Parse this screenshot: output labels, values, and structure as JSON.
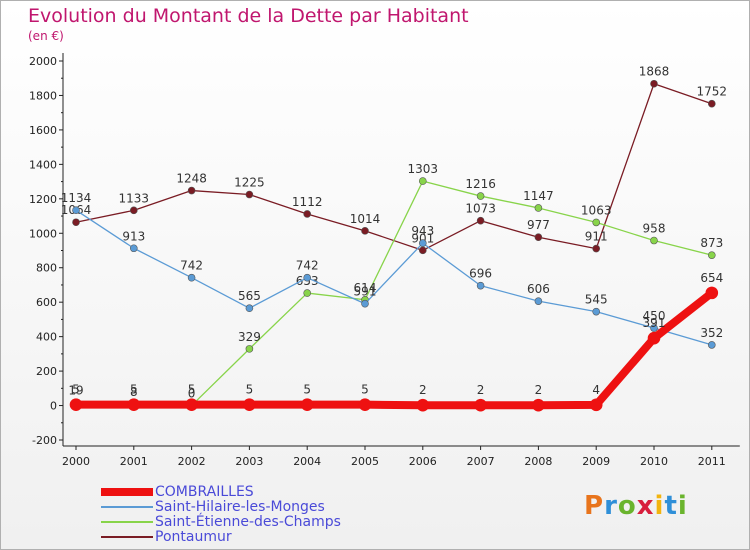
{
  "title": "Evolution du Montant de la Dette par Habitant",
  "unit": "(en €)",
  "logo": "Proxiti",
  "logo_colors": [
    "#e8741c",
    "#2f8fd8",
    "#6ab42d",
    "#d81e3c",
    "#f2b40f",
    "#2f8fd8",
    "#6ab42d"
  ],
  "chart_data": {
    "type": "line",
    "title": "Evolution du Montant de la Dette par Habitant",
    "ylabel": "(en €)",
    "x": [
      "2000",
      "2001",
      "2002",
      "2003",
      "2004",
      "2005",
      "2006",
      "2007",
      "2008",
      "2009",
      "2010",
      "2011"
    ],
    "yticks": [
      -200,
      0,
      200,
      400,
      600,
      800,
      1000,
      1200,
      1400,
      1600,
      1800,
      2000
    ],
    "ylim": [
      -200,
      2000
    ],
    "grid": false,
    "legend_position": "bottom",
    "series": [
      {
        "name": "Pontaumur",
        "color": "#7a1c24",
        "values": [
          1064,
          1133,
          1248,
          1225,
          1112,
          1014,
          901,
          1073,
          977,
          911,
          1868,
          1752
        ],
        "labels": [
          "1064",
          "1133",
          "1248",
          "1225",
          "1112",
          "1014",
          "901",
          "1073",
          "977",
          "911",
          "1868",
          "1752"
        ]
      },
      {
        "name": "Saint-Étienne-des-Champs",
        "color": "#88d44a",
        "values": [
          19,
          8,
          0,
          329,
          653,
          614,
          1303,
          1216,
          1147,
          1063,
          958,
          873
        ],
        "labels": [
          "19",
          "8",
          "0",
          "329",
          "653",
          "614",
          "1303",
          "1216",
          "1147",
          "1063",
          "958",
          "873"
        ]
      },
      {
        "name": "Saint-Hilaire-les-Monges",
        "color": "#5b9bd5",
        "values": [
          1134,
          913,
          742,
          565,
          742,
          591,
          943,
          696,
          606,
          545,
          450,
          352
        ],
        "labels": [
          "1134",
          "913",
          "742",
          "565",
          "742",
          "591",
          "943",
          "696",
          "606",
          "545",
          "450",
          "352"
        ]
      },
      {
        "name": "COMBRAILLES",
        "color": "#ee1111",
        "values": [
          5,
          5,
          5,
          5,
          5,
          5,
          2,
          2,
          2,
          4,
          391,
          654
        ],
        "labels": [
          "5",
          "5",
          "5",
          "5",
          "5",
          "5",
          "2",
          "2",
          "2",
          "4",
          "391",
          "654"
        ]
      }
    ]
  }
}
